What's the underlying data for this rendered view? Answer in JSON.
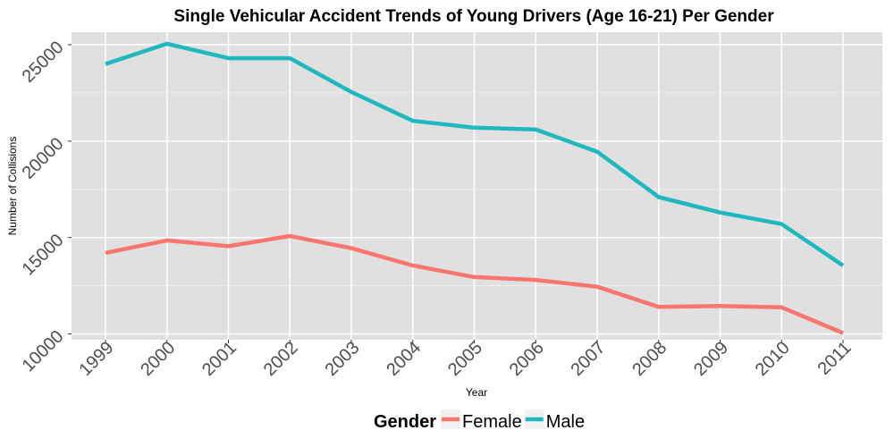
{
  "chart_data": {
    "type": "line",
    "title": "Single Vehicular Accident Trends of Young Drivers (Age 16-21) Per Gender",
    "xlabel": "Year",
    "ylabel": "Number of Collisions",
    "categories": [
      "1999",
      "2000",
      "2001",
      "2002",
      "2003",
      "2004",
      "2005",
      "2006",
      "2007",
      "2008",
      "2009",
      "2010",
      "2011"
    ],
    "yticks": [
      "10000",
      "15000",
      "20000",
      "25000"
    ],
    "ylim": [
      9700,
      25650
    ],
    "grid": true,
    "legend": {
      "title": "Gender",
      "placement": "bottom"
    },
    "series": [
      {
        "name": "Female",
        "color": "#f8766d",
        "values": [
          14200,
          14850,
          14550,
          15080,
          14450,
          13550,
          12950,
          12800,
          12450,
          11400,
          11450,
          11380,
          10050
        ]
      },
      {
        "name": "Male",
        "color": "#1fb8bf",
        "values": [
          24000,
          25050,
          24300,
          24300,
          22550,
          21050,
          20700,
          20600,
          19450,
          17100,
          16300,
          15700,
          13550
        ]
      }
    ],
    "panel_background": "#e0e0e0",
    "grid_color": "#ffffff"
  }
}
